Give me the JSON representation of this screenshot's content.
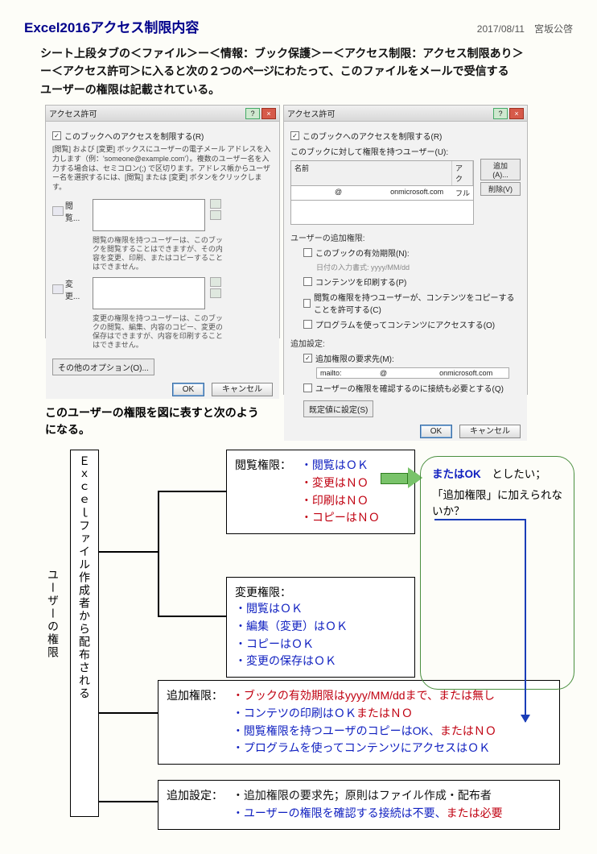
{
  "header": {
    "title": "Excel2016アクセス制限内容",
    "date": "2017/08/11",
    "author": "宮坂公啓"
  },
  "intro": {
    "line1": "シート上段タブの＜ファイル＞ー＜情報：ブック保護＞ー＜アクセス制限：アクセス制限あり＞",
    "line2_a": "ー＜アクセス許可＞に入ると次の２つの",
    "line2_b": "ページ",
    "line2_c": "にわたって、このファイルをメールで受信する",
    "line3": "ユーザーの権限は記載されている。"
  },
  "dlg1": {
    "title": "アクセス許可",
    "help": "?",
    "close": "×",
    "restrict_chk": "このブックへのアクセスを制限する(R)",
    "desc": "[閲覧] および [変更] ボックスにユーザーの電子メール アドレスを入力します（例：'someone@example.com'）。複数のユーザー名を入力する場合は、セミコロン(;) で区切ります。アドレス帳からユーザー名を選択するには、[閲覧] または [変更] ボタンをクリックします。",
    "read_lbl": "閲覧...",
    "read_hint": "閲覧の権限を持つユーザーは、このブックを閲覧することはできますが、その内容を変更、印刷、またはコピーすることはできません。",
    "change_lbl": "変更...",
    "change_hint": "変更の権限を持つユーザーは、このブックの閲覧、編集、内容のコピー、変更の保存はできますが、内容を印刷することはできません。",
    "more_opt": "その他のオプション(O)...",
    "ok": "OK",
    "cancel": "キャンセル"
  },
  "dlg2": {
    "title": "アクセス許可",
    "help": "?",
    "close": "×",
    "restrict_chk": "このブックへのアクセスを制限する(R)",
    "users_lbl": "このブックに対して権限を持つユーザー(U):",
    "col_name": "名前",
    "col_acc": "アク",
    "row_name": "                    @                        onmicrosoft.com",
    "row_acc": "フル",
    "add_btn": "追加(A)...",
    "del_btn": "削除(V)",
    "add_perm_lbl": "ユーザーの追加権限:",
    "expiry_chk": "このブックの有効期限(N):",
    "expiry_hint": "日付の入力書式: yyyy/MM/dd",
    "print_chk": "コンテンツを印刷する(P)",
    "copy_chk": "閲覧の権限を持つユーザーが、コンテンツをコピーすることを許可する(C)",
    "prog_chk": "プログラムを使ってコンテンツにアクセスする(O)",
    "add_set_lbl": "追加設定:",
    "req_chk": "追加権限の要求先(M):",
    "mailto": "mailto:                   @                          onmicrosoft.com",
    "conn_chk": "ユーザーの権限を確認するのに接続も必要とする(Q)",
    "default_btn": "既定値に設定(S)",
    "ok": "OK",
    "cancel": "キャンセル"
  },
  "mid": {
    "line1": "このユーザーの権限を図に表すと次のよう",
    "line2": "になる。"
  },
  "diagram": {
    "creator_label": "Ｅｘｃｅｌファイル作成者から配布される",
    "user_label": "ユーザーの権限",
    "b1": {
      "title": "閲覧権限：",
      "items": [
        {
          "t": "・閲覧はＯＫ",
          "c": "blue"
        },
        {
          "t": "・変更はＮＯ",
          "c": "red"
        },
        {
          "t": "・印刷はＮＯ",
          "c": "red"
        },
        {
          "t": "・コピーはＮＯ",
          "c": "red"
        }
      ]
    },
    "b2": {
      "title": "変更権限：",
      "items": [
        {
          "t": "・閲覧はＯＫ",
          "c": "blue"
        },
        {
          "t": "・編集（変更）はＯＫ",
          "c": "blue"
        },
        {
          "t": "・コピーはＯＫ",
          "c": "blue"
        },
        {
          "t": "・変更の保存はＯＫ",
          "c": "blue"
        }
      ]
    },
    "b3": {
      "title": "追加権限：",
      "items": [
        {
          "pre": "・ブックの有効期限はyyyy/MM/ddまで、",
          "pc": "red",
          "suf": "または無し",
          "sc": "red"
        },
        {
          "pre": "・コンテツの印刷はＯＫ",
          "pc": "blue",
          "suf": "またはＮＯ",
          "sc": "red"
        },
        {
          "pre": "・閲覧権限を持つユーザのコピーはOK、",
          "pc": "blue",
          "suf": "またはＮＯ",
          "sc": "red"
        },
        {
          "pre": "・プログラムを使ってコンテンツにアクセスはＯＫ",
          "pc": "blue",
          "suf": "",
          "sc": "blue"
        }
      ]
    },
    "b4": {
      "title": "追加設定：",
      "items": [
        {
          "pre": "・追加権限の要求先；原則はファイル作成・配布者",
          "pc": "black",
          "suf": "",
          "sc": "black"
        },
        {
          "pre": "・ユーザーの権限を確認する接続は不要、",
          "pc": "blue",
          "suf": "または必要",
          "sc": "red"
        }
      ]
    },
    "callout": {
      "l1a": "またはOK",
      "l1b": "　としたい；",
      "l2": "「追加権限」に加えられないか？"
    }
  }
}
